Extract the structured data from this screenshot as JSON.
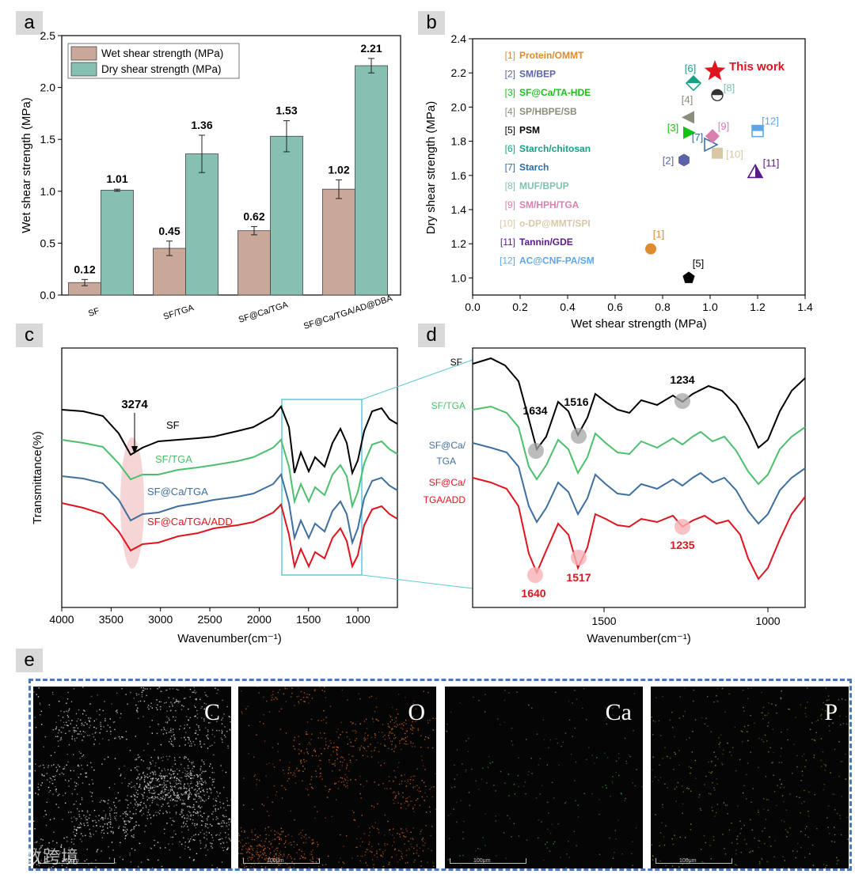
{
  "panel_labels": {
    "a": "a",
    "b": "b",
    "c": "c",
    "d": "d",
    "e": "e"
  },
  "chart_data": [
    {
      "type": "bar",
      "panel": "a",
      "categories": [
        "SF",
        "SF/TGA",
        "SF@Ca/TGA",
        "SF@Ca/TGA/AD@DBA"
      ],
      "series": [
        {
          "name": "Wet shear strength (MPa)",
          "values": [
            0.12,
            0.45,
            0.62,
            1.02
          ],
          "errors": [
            0.03,
            0.07,
            0.04,
            0.09
          ],
          "color": "#c9a899"
        },
        {
          "name": "Dry shear strength (MPa)",
          "values": [
            1.01,
            1.36,
            1.53,
            2.21
          ],
          "errors": [
            0.01,
            0.18,
            0.15,
            0.07
          ],
          "color": "#86c0b2"
        }
      ],
      "value_labels": [
        [
          "0.12",
          "0.45",
          "0.62",
          "1.02"
        ],
        [
          "1.01",
          "1.36",
          "1.53",
          "2.21"
        ]
      ],
      "ylabel": "Wet shear strength (MPa)",
      "ylim": [
        0,
        2.5
      ],
      "yticks": [
        "0.0",
        "0.5",
        "1.0",
        "1.5",
        "2.0",
        "2.5"
      ],
      "legend": "top-left"
    },
    {
      "type": "scatter",
      "panel": "b",
      "xlabel": "Wet shear strength (MPa)",
      "ylabel": "Dry shear strength (MPa)",
      "xlim": [
        0,
        1.4
      ],
      "ylim": [
        0.9,
        2.4
      ],
      "xticks": [
        "0.0",
        "0.2",
        "0.4",
        "0.6",
        "0.8",
        "1.0",
        "1.2",
        "1.4"
      ],
      "yticks": [
        "1.0",
        "1.2",
        "1.4",
        "1.6",
        "1.8",
        "2.0",
        "2.2",
        "2.4"
      ],
      "points": [
        {
          "ref": "[1]",
          "name": "Protein/OMMT",
          "x": 0.75,
          "y": 1.17,
          "color": "#e08a2e",
          "marker": "circle"
        },
        {
          "ref": "[2]",
          "name": "SM/BEP",
          "x": 0.89,
          "y": 1.69,
          "color": "#5b62a8",
          "marker": "hexagon"
        },
        {
          "ref": "[3]",
          "name": "SF@Ca/TA-HDE",
          "x": 0.91,
          "y": 1.85,
          "color": "#13c313",
          "marker": "triangle-right"
        },
        {
          "ref": "[4]",
          "name": "SP/HBPE/SB",
          "x": 0.91,
          "y": 1.94,
          "color": "#8c8c7c",
          "marker": "triangle-left"
        },
        {
          "ref": "[5]",
          "name": "PSM",
          "x": 0.91,
          "y": 1.0,
          "color": "#000000",
          "marker": "pentagon"
        },
        {
          "ref": "[6]",
          "name": "Starch/chitosan",
          "x": 0.93,
          "y": 2.14,
          "color": "#17a083",
          "marker": "diamond-half"
        },
        {
          "ref": "[7]",
          "name": "Starch",
          "x": 1.0,
          "y": 1.78,
          "color": "#2e6aa8",
          "marker": "triangle-right-open"
        },
        {
          "ref": "[8]",
          "name": "MUF/BPUP",
          "x": 1.03,
          "y": 2.07,
          "color": "#7fbfb0",
          "marker": "circle-half"
        },
        {
          "ref": "[9]",
          "name": "SM/HPH/TGA",
          "x": 1.01,
          "y": 1.83,
          "color": "#d87fb0",
          "marker": "diamond"
        },
        {
          "ref": "[10]",
          "name": "o-DP@MMT/SPI",
          "x": 1.03,
          "y": 1.73,
          "color": "#d8c8a8",
          "marker": "square"
        },
        {
          "ref": "[11]",
          "name": "Tannin/GDE",
          "x": 1.19,
          "y": 1.62,
          "color": "#5a1a8a",
          "marker": "triangle-half"
        },
        {
          "ref": "[12]",
          "name": "AC@CNF-PA/SM",
          "x": 1.2,
          "y": 1.86,
          "color": "#5ea6e8",
          "marker": "square-half"
        },
        {
          "ref": "",
          "name": "This work",
          "x": 1.02,
          "y": 2.21,
          "color": "#e0141e",
          "marker": "star"
        }
      ]
    },
    {
      "type": "line",
      "panel": "c",
      "xlabel": "Wavenumber(cm⁻¹)",
      "ylabel": "Transmittance(%)",
      "xlim": [
        4000,
        600
      ],
      "xticks": [
        "4000",
        "3500",
        "3000",
        "2500",
        "2000",
        "1500",
        "1000"
      ],
      "series": [
        {
          "name": "SF",
          "color": "#000000"
        },
        {
          "name": "SF/TGA",
          "color": "#4cbf6c"
        },
        {
          "name": "SF@Ca/TGA",
          "color": "#3e6f9e"
        },
        {
          "name": "SF@Ca/TGA/ADD",
          "color": "#e0141e"
        }
      ],
      "annotations": [
        "3274"
      ]
    },
    {
      "type": "line",
      "panel": "d",
      "xlabel": "Wavenumber(cm⁻¹)",
      "xlim": [
        1800,
        900
      ],
      "xticks": [
        "1500",
        "1000"
      ],
      "series_labels": [
        "SF",
        "SF/TGA",
        "SF@Ca/",
        "TGA",
        "SF@Ca/",
        "TGA/ADD"
      ],
      "annotations_top": [
        "1634",
        "1516",
        "1234"
      ],
      "annotations_bottom": [
        "1640",
        "1517",
        "1235"
      ]
    }
  ],
  "eds_maps": {
    "elements": [
      "C",
      "O",
      "Ca",
      "P"
    ],
    "scale_bar": "100μm"
  },
  "watermark": "大数跨境"
}
